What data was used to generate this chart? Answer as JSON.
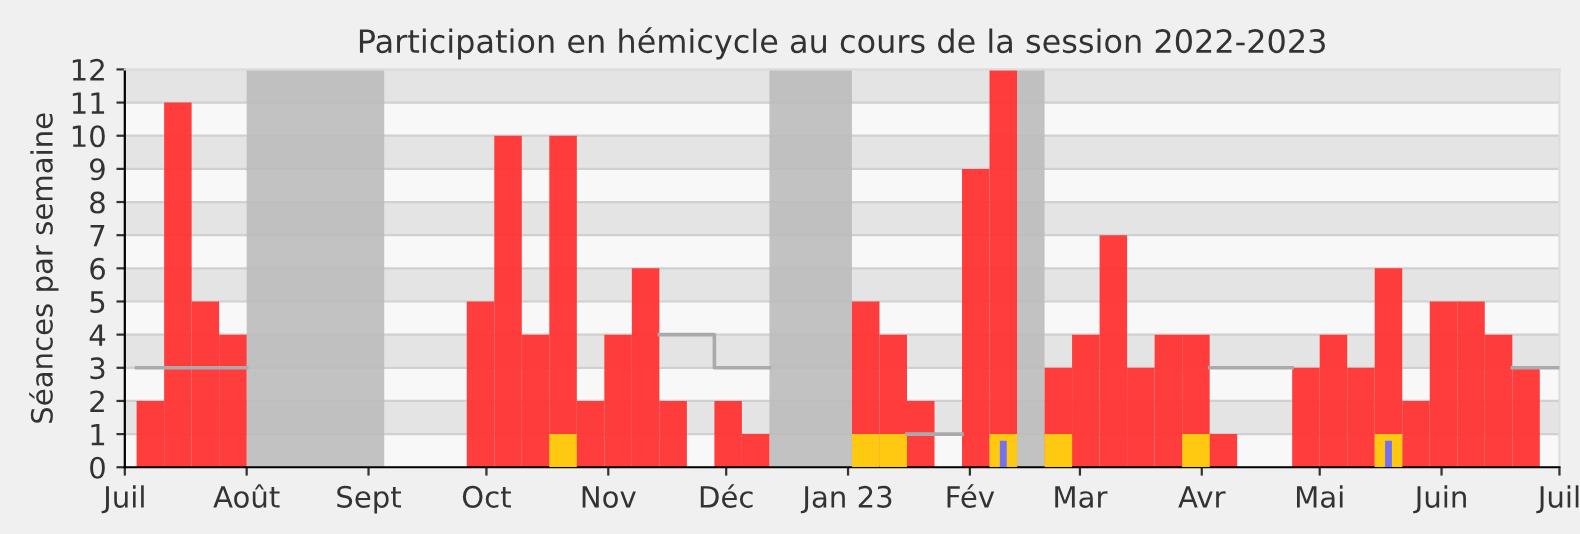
{
  "chart_data": {
    "type": "bar",
    "title": "Participation en hémicycle au cours de la session 2022-2023",
    "ylabel": "Séances par semaine",
    "x": [
      "2022-07-04",
      "2022-07-11",
      "2022-07-18",
      "2022-07-25",
      "2022-08-01",
      "2022-08-08",
      "2022-08-15",
      "2022-08-22",
      "2022-08-29",
      "2022-09-05",
      "2022-09-12",
      "2022-09-19",
      "2022-09-26",
      "2022-10-03",
      "2022-10-10",
      "2022-10-17",
      "2022-10-24",
      "2022-10-31",
      "2022-11-07",
      "2022-11-14",
      "2022-11-21",
      "2022-11-28",
      "2022-12-05",
      "2022-12-12",
      "2022-12-19",
      "2022-12-26",
      "2023-01-02",
      "2023-01-09",
      "2023-01-16",
      "2023-01-23",
      "2023-01-30",
      "2023-02-06",
      "2023-02-13",
      "2023-02-20",
      "2023-02-27",
      "2023-03-06",
      "2023-03-13",
      "2023-03-20",
      "2023-03-27",
      "2023-04-03",
      "2023-04-10",
      "2023-04-17",
      "2023-04-24",
      "2023-05-01",
      "2023-05-08",
      "2023-05-15",
      "2023-05-22",
      "2023-05-29",
      "2023-06-05",
      "2023-06-12",
      "2023-06-19",
      "2023-06-26"
    ],
    "series": [
      {
        "color": "#ff3333",
        "values": [
          2,
          11,
          5,
          4,
          0,
          0,
          0,
          0,
          0,
          0,
          0,
          0,
          5,
          10,
          4,
          10,
          2,
          4,
          6,
          2,
          0,
          2,
          1,
          0,
          0,
          0,
          5,
          4,
          2,
          0,
          9,
          12,
          0,
          3,
          4,
          7,
          3,
          4,
          4,
          1,
          0,
          0,
          3,
          4,
          3,
          6,
          2,
          5,
          5,
          4,
          3,
          0
        ]
      },
      {
        "color": "#ffd10f",
        "values": [
          0,
          0,
          0,
          0,
          0,
          0,
          0,
          0,
          0,
          0,
          0,
          0,
          0,
          0,
          0,
          1,
          0,
          0,
          0,
          0,
          0,
          0,
          0,
          0,
          0,
          0,
          1,
          1,
          0,
          0,
          0,
          1,
          0,
          1,
          0,
          0,
          0,
          0,
          1,
          0,
          0,
          0,
          0,
          0,
          0,
          1,
          0,
          0,
          0,
          0,
          0,
          0
        ]
      },
      {
        "color": "#6b6bff",
        "values": [
          0,
          0,
          0,
          0,
          0,
          0,
          0,
          0,
          0,
          0,
          0,
          0,
          0,
          0,
          0,
          0,
          0,
          0,
          0,
          0,
          0,
          0,
          0,
          0,
          0,
          0,
          0,
          0,
          0,
          0,
          0,
          0.8,
          0,
          0,
          0,
          0,
          0,
          0,
          0,
          0,
          0,
          0,
          0,
          0,
          0,
          0.8,
          0,
          0,
          0,
          0,
          0,
          0
        ]
      },
      {
        "type": "step",
        "color": "#aaaaaa",
        "values": [
          3,
          3,
          3,
          3,
          null,
          null,
          null,
          null,
          null,
          null,
          null,
          null,
          null,
          null,
          null,
          null,
          null,
          null,
          null,
          4,
          4,
          3,
          3,
          null,
          null,
          null,
          null,
          null,
          1,
          1,
          null,
          null,
          null,
          null,
          null,
          null,
          null,
          null,
          null,
          3,
          3,
          3,
          null,
          null,
          null,
          null,
          null,
          null,
          null,
          null,
          3,
          3
        ]
      }
    ],
    "bands": [
      {
        "axis": "x",
        "from": "2022-08-01",
        "to": "2022-09-05",
        "color": "#bbbbbb"
      },
      {
        "axis": "x",
        "from": "2022-12-12",
        "to": "2023-01-02",
        "color": "#bbbbbb"
      },
      {
        "axis": "x",
        "from": "2023-02-13",
        "to": "2023-02-20",
        "color": "#bbbbbb"
      }
    ],
    "xlim": [
      "2022-07-01",
      "2023-07-01"
    ],
    "xticks": [
      {
        "value": "2022-07-01",
        "label": "Juil"
      },
      {
        "value": "2022-08-01",
        "label": "Août"
      },
      {
        "value": "2022-09-01",
        "label": "Sept"
      },
      {
        "value": "2022-10-01",
        "label": "Oct"
      },
      {
        "value": "2022-11-01",
        "label": "Nov"
      },
      {
        "value": "2022-12-01",
        "label": "Déc"
      },
      {
        "value": "2023-01-01",
        "label": "Jan 23"
      },
      {
        "value": "2023-02-01",
        "label": "Fév"
      },
      {
        "value": "2023-03-01",
        "label": "Mar"
      },
      {
        "value": "2023-04-01",
        "label": "Avr"
      },
      {
        "value": "2023-05-01",
        "label": "Mai"
      },
      {
        "value": "2023-06-01",
        "label": "Juin"
      },
      {
        "value": "2023-07-01",
        "label": "Juil"
      }
    ],
    "ylim": [
      0,
      12
    ],
    "yticks": [
      0,
      1,
      2,
      3,
      4,
      5,
      6,
      7,
      8,
      9,
      10,
      11,
      12
    ],
    "grid": "y"
  }
}
